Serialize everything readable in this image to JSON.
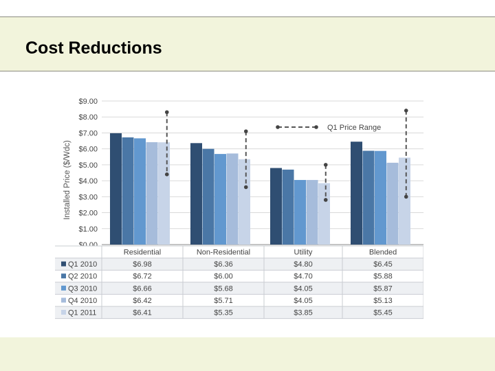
{
  "slide": {
    "title": "Cost Reductions"
  },
  "chart_data": {
    "type": "bar",
    "ylabel": "Installed Price ($/Wdc)",
    "ylim": [
      0,
      9
    ],
    "yticks": [
      "$0.00",
      "$1.00",
      "$2.00",
      "$3.00",
      "$4.00",
      "$5.00",
      "$6.00",
      "$7.00",
      "$8.00",
      "$9.00"
    ],
    "categories": [
      "Residential",
      "Non-Residential",
      "Utility",
      "Blended"
    ],
    "series": [
      {
        "name": "Q1 2010",
        "color": "#2f4e72",
        "values": [
          6.98,
          6.36,
          4.8,
          6.45
        ],
        "labels": [
          "$6.98",
          "$6.36",
          "$4.80",
          "$6.45"
        ]
      },
      {
        "name": "Q2 2010",
        "color": "#4a77a6",
        "values": [
          6.72,
          6.0,
          4.7,
          5.88
        ],
        "labels": [
          "$6.72",
          "$6.00",
          "$4.70",
          "$5.88"
        ]
      },
      {
        "name": "Q3 2010",
        "color": "#6298cf",
        "values": [
          6.66,
          5.68,
          4.05,
          5.87
        ],
        "labels": [
          "$6.66",
          "$5.68",
          "$4.05",
          "$5.87"
        ]
      },
      {
        "name": "Q4 2010",
        "color": "#a6bcdb",
        "values": [
          6.42,
          5.71,
          4.05,
          5.13
        ],
        "labels": [
          "$6.42",
          "$5.71",
          "$4.05",
          "$5.13"
        ]
      },
      {
        "name": "Q1 2011",
        "color": "#c7d4e8",
        "values": [
          6.41,
          5.35,
          3.85,
          5.45
        ],
        "labels": [
          "$6.41",
          "$5.35",
          "$3.85",
          "$5.45"
        ]
      }
    ],
    "range_legend": "Q1 Price Range",
    "q1_price_range": [
      {
        "category": "Residential",
        "low": 4.4,
        "high": 8.3
      },
      {
        "category": "Non-Residential",
        "low": 3.6,
        "high": 7.1
      },
      {
        "category": "Utility",
        "low": 2.8,
        "high": 5.0
      },
      {
        "category": "Blended",
        "low": 3.0,
        "high": 8.4
      }
    ],
    "grid": true,
    "legend": "data table below chart"
  }
}
